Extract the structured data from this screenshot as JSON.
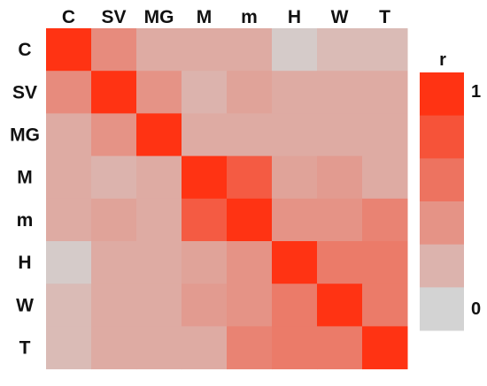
{
  "chart_data": {
    "type": "heatmap",
    "title": "",
    "x_categories": [
      "C",
      "SV",
      "MG",
      "M",
      "m",
      "H",
      "W",
      "T"
    ],
    "y_categories": [
      "C",
      "SV",
      "MG",
      "M",
      "m",
      "H",
      "W",
      "T"
    ],
    "values": [
      [
        1.0,
        0.45,
        0.25,
        0.25,
        0.25,
        0.05,
        0.15,
        0.15
      ],
      [
        0.45,
        1.0,
        0.4,
        0.2,
        0.3,
        0.25,
        0.25,
        0.25
      ],
      [
        0.25,
        0.4,
        1.0,
        0.25,
        0.25,
        0.25,
        0.25,
        0.25
      ],
      [
        0.25,
        0.2,
        0.25,
        1.0,
        0.75,
        0.3,
        0.35,
        0.25
      ],
      [
        0.25,
        0.3,
        0.25,
        0.75,
        1.0,
        0.4,
        0.4,
        0.5
      ],
      [
        0.05,
        0.25,
        0.25,
        0.3,
        0.4,
        1.0,
        0.55,
        0.55
      ],
      [
        0.15,
        0.25,
        0.25,
        0.35,
        0.4,
        0.55,
        1.0,
        0.55
      ],
      [
        0.15,
        0.25,
        0.25,
        0.25,
        0.5,
        0.55,
        0.55,
        1.0
      ]
    ],
    "colorbar": {
      "title": "r",
      "min": 0,
      "max": 1,
      "min_label": "0",
      "max_label": "1",
      "steps": 6,
      "low_color": "#d3d3d3",
      "high_color": "#ff3313"
    },
    "grid": false,
    "legend_placement": "right"
  }
}
